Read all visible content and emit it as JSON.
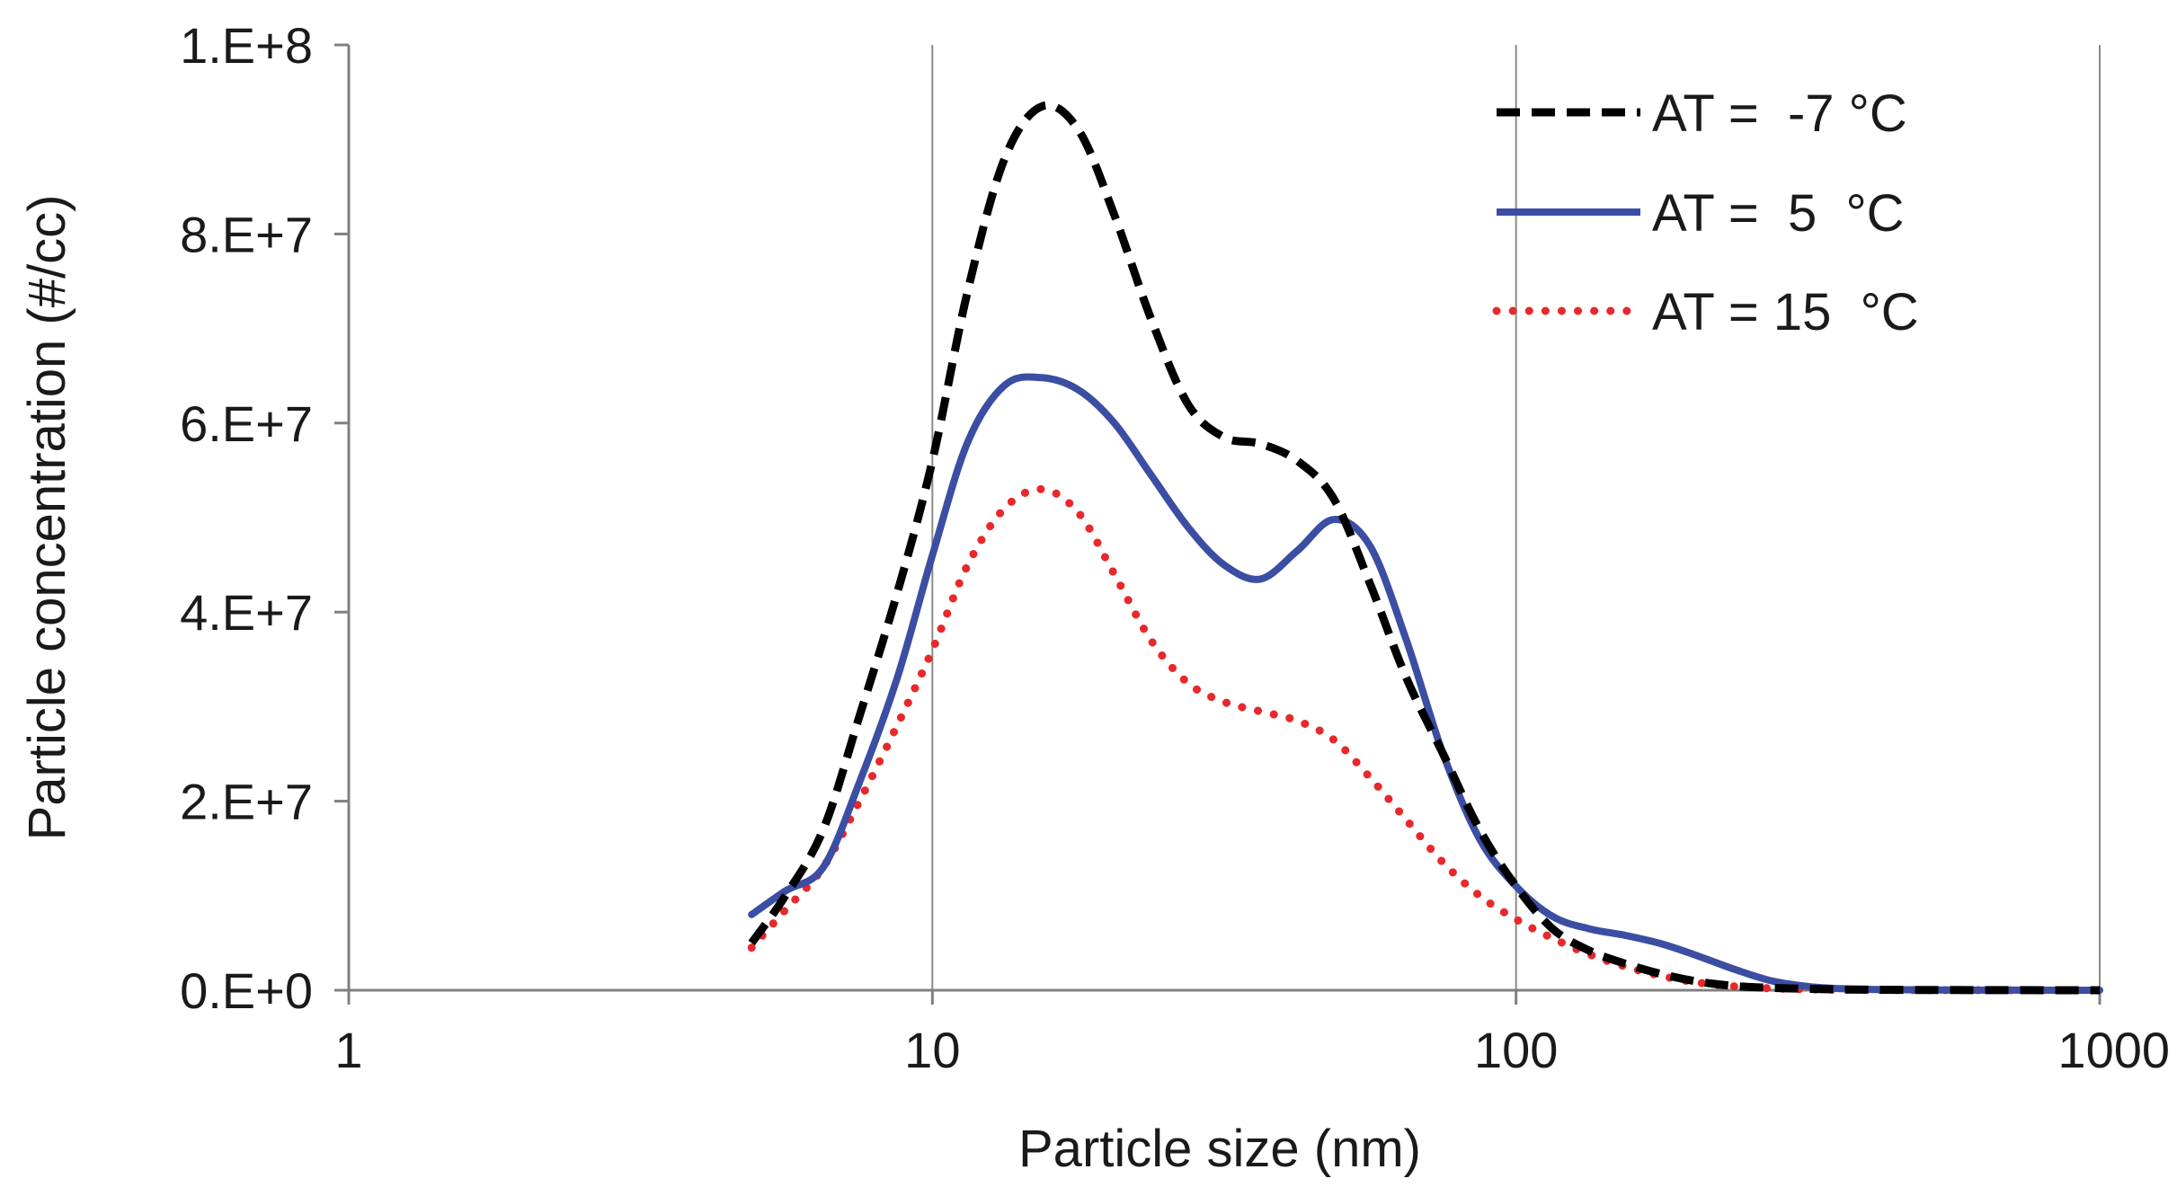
{
  "chart_data": {
    "type": "line",
    "title": "",
    "xlabel": "Particle size (nm)",
    "ylabel": "Particle concentration (#/cc)",
    "xscale": "log",
    "xlim": [
      1,
      1000
    ],
    "ylim": [
      0,
      100000000
    ],
    "x_ticks": [
      1,
      10,
      100,
      1000
    ],
    "x_tick_labels": [
      "1",
      "10",
      "100",
      "1000"
    ],
    "y_ticks": [
      0,
      20000000,
      40000000,
      60000000,
      80000000,
      100000000
    ],
    "y_tick_labels": [
      "0.E+0",
      "2.E+7",
      "4.E+7",
      "6.E+7",
      "8.E+7",
      "1.E+8"
    ],
    "grid": "vertical major lines",
    "legend_position": "top-right",
    "series": [
      {
        "name": "AT =  -7 °C",
        "color": "#000000",
        "style": "dashed",
        "x": [
          4.9,
          5.6,
          6.5,
          7.5,
          8.7,
          10,
          11.5,
          13.3,
          15.4,
          17.8,
          20.5,
          23.7,
          27.4,
          31.6,
          36.5,
          42.2,
          48.7,
          56.2,
          64.9,
          75,
          86.6,
          100,
          115.5,
          133.4,
          154,
          177.8,
          205.4,
          237.1,
          273.8,
          316.2,
          365.2,
          421.7,
          487,
          562.3,
          649.4,
          749.9,
          865.9,
          1000
        ],
        "values": [
          5000000,
          10000000,
          17000000,
          29000000,
          42000000,
          56000000,
          74000000,
          88000000,
          93500000,
          91000000,
          82000000,
          71000000,
          62000000,
          58500000,
          57800000,
          56000000,
          52000000,
          43000000,
          33000000,
          25000000,
          17000000,
          11000000,
          6500000,
          4200000,
          2800000,
          1700000,
          900000,
          450000,
          250000,
          150000,
          80000,
          50000,
          30000,
          20000,
          10000,
          5000,
          3000,
          0
        ]
      },
      {
        "name": "AT =  5  °C",
        "color": "#3b4ea3",
        "style": "solid",
        "x": [
          4.9,
          5.6,
          6.5,
          7.5,
          8.7,
          10,
          11.5,
          13.3,
          15.4,
          17.8,
          20.5,
          23.7,
          27.4,
          31.6,
          36.5,
          42.2,
          48.7,
          56.2,
          64.9,
          75,
          86.6,
          100,
          115.5,
          133.4,
          154,
          177.8,
          205.4,
          237.1,
          273.8,
          316.2,
          365.2,
          421.7,
          487,
          562.3,
          649.4,
          749.9,
          865.9,
          1000
        ],
        "values": [
          8000000,
          10500000,
          13000000,
          22000000,
          33000000,
          46000000,
          58000000,
          64000000,
          64800000,
          63500000,
          60000000,
          54500000,
          49000000,
          45000000,
          43500000,
          46500000,
          49800000,
          47000000,
          37000000,
          25000000,
          16000000,
          11000000,
          7800000,
          6500000,
          5800000,
          4900000,
          3600000,
          2200000,
          1000000,
          400000,
          150000,
          80000,
          40000,
          20000,
          10000,
          5000,
          2000,
          0
        ]
      },
      {
        "name": "AT = 15  °C",
        "color": "#e8282b",
        "style": "dotted",
        "x": [
          4.9,
          5.6,
          6.5,
          7.5,
          8.7,
          10,
          11.5,
          13.3,
          15.4,
          17.8,
          20.5,
          23.7,
          27.4,
          31.6,
          36.5,
          42.2,
          48.7,
          56.2,
          64.9,
          75,
          86.6,
          100,
          115.5,
          133.4,
          154,
          177.8,
          205.4,
          237.1,
          273.8,
          316.2,
          365.2,
          421.7,
          487,
          562.3,
          649.4,
          749.9,
          865.9,
          1000
        ],
        "values": [
          4500000,
          8500000,
          13000000,
          20000000,
          28000000,
          36000000,
          45000000,
          51000000,
          53000000,
          50500000,
          44000000,
          37000000,
          32500000,
          30500000,
          29500000,
          28500000,
          26500000,
          22500000,
          18000000,
          13500000,
          10000000,
          7500000,
          5500000,
          3800000,
          2500000,
          1500000,
          800000,
          400000,
          200000,
          100000,
          50000,
          30000,
          20000,
          10000,
          5000,
          3000,
          1000,
          0
        ]
      }
    ]
  }
}
